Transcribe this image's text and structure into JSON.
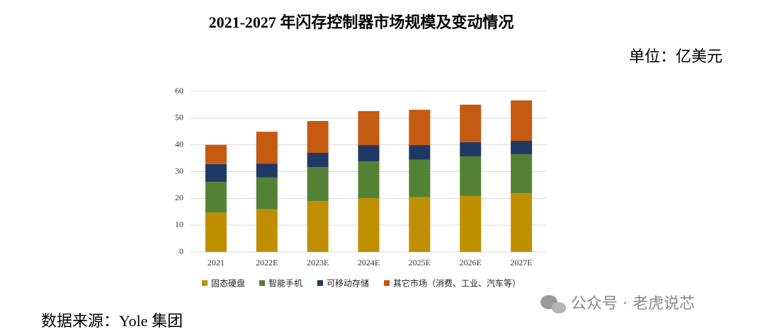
{
  "chart_data": {
    "type": "stacked_bar",
    "title": "2021-2027 年闪存控制器市场规模及变动情况",
    "unit": "单位：亿美元",
    "source": "数据来源：Yole 集团",
    "watermark": "公众号 · 老虎说芯",
    "categories": [
      "2021",
      "2022E",
      "2023E",
      "2024E",
      "2025E",
      "2026E",
      "2027E"
    ],
    "series": [
      {
        "name": "固态硬盘",
        "color": "#bf8f00",
        "values": [
          14.7,
          15.9,
          19.0,
          20.1,
          20.4,
          20.9,
          21.9
        ]
      },
      {
        "name": "智能手机",
        "color": "#548235",
        "values": [
          11.5,
          11.9,
          12.7,
          13.7,
          14.0,
          14.8,
          14.6
        ]
      },
      {
        "name": "可移动存储",
        "color": "#203864",
        "values": [
          6.6,
          5.2,
          5.3,
          6.1,
          5.5,
          5.3,
          5.0
        ]
      },
      {
        "name": "其它市场（消费、工业、汽车等）",
        "color": "#c55a11",
        "values": [
          7.2,
          11.9,
          11.9,
          12.7,
          13.2,
          14.0,
          15.1
        ]
      }
    ],
    "ylim": [
      0,
      60
    ],
    "yticks": [
      0,
      10,
      20,
      30,
      40,
      50,
      60
    ],
    "grid": true,
    "legend": "bottom"
  }
}
